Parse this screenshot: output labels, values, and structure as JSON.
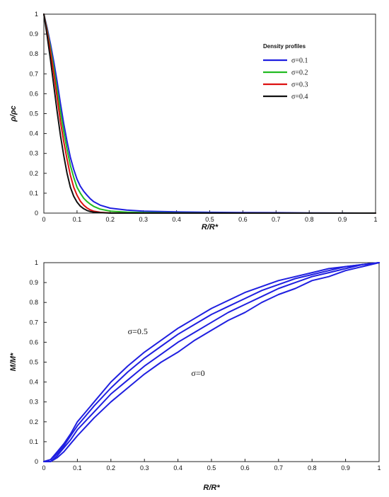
{
  "chart_data": [
    {
      "type": "line",
      "xlabel": "R/R*",
      "ylabel": "ρ/ρc",
      "xlim": [
        0,
        1
      ],
      "ylim": [
        0,
        1
      ],
      "xticks": [
        "0",
        "0.1",
        "0.2",
        "0.3",
        "0.4",
        "0.5",
        "0.6",
        "0.7",
        "0.8",
        "0.9",
        "1"
      ],
      "yticks": [
        "0",
        "0.1",
        "0.2",
        "0.3",
        "0.4",
        "0.5",
        "0.6",
        "0.7",
        "0.8",
        "0.9",
        "1"
      ],
      "grid": false,
      "legend": {
        "title": "Density profiles",
        "placement": "top-right"
      },
      "x": [
        0,
        0.01,
        0.02,
        0.03,
        0.04,
        0.05,
        0.06,
        0.07,
        0.08,
        0.09,
        0.1,
        0.11,
        0.12,
        0.13,
        0.14,
        0.15,
        0.17,
        0.2,
        0.25,
        0.3,
        0.4,
        0.5,
        0.6,
        0.7,
        0.8,
        0.9,
        1.0
      ],
      "series": [
        {
          "name": "σ=0.1",
          "color": "#1f1fe0",
          "values": [
            1.0,
            0.93,
            0.85,
            0.76,
            0.66,
            0.55,
            0.45,
            0.36,
            0.28,
            0.22,
            0.17,
            0.135,
            0.11,
            0.09,
            0.072,
            0.058,
            0.04,
            0.025,
            0.015,
            0.01,
            0.006,
            0.004,
            0.003,
            0.002,
            0.001,
            0.0005,
            0
          ]
        },
        {
          "name": "σ=0.2",
          "color": "#22bb22",
          "values": [
            1.0,
            0.92,
            0.83,
            0.73,
            0.62,
            0.51,
            0.41,
            0.32,
            0.24,
            0.18,
            0.13,
            0.1,
            0.075,
            0.058,
            0.045,
            0.034,
            0.02,
            0.01,
            0.005,
            0.003,
            0.001,
            0.0005,
            0,
            0,
            0,
            0,
            0
          ]
        },
        {
          "name": "σ=0.3",
          "color": "#dd1111",
          "values": [
            1.0,
            0.91,
            0.81,
            0.7,
            0.58,
            0.46,
            0.36,
            0.27,
            0.19,
            0.13,
            0.09,
            0.06,
            0.04,
            0.026,
            0.016,
            0.01,
            0.004,
            0.001,
            0,
            0,
            0,
            0,
            0,
            0,
            0,
            0,
            0
          ]
        },
        {
          "name": "σ=0.4",
          "color": "#111111",
          "values": [
            1.0,
            0.89,
            0.77,
            0.64,
            0.51,
            0.39,
            0.29,
            0.2,
            0.13,
            0.085,
            0.055,
            0.035,
            0.022,
            0.013,
            0.008,
            0.005,
            0.002,
            0,
            0,
            0,
            0,
            0,
            0,
            0,
            0,
            0,
            0
          ]
        }
      ]
    },
    {
      "type": "line",
      "xlabel": "R/R*",
      "ylabel": "M/M*",
      "xlim": [
        0,
        1
      ],
      "ylim": [
        0,
        1
      ],
      "xticks": [
        "0",
        "0.1",
        "0.2",
        "0.3",
        "0.4",
        "0.5",
        "0.6",
        "0.7",
        "0.8",
        "0.9",
        "1"
      ],
      "yticks": [
        "0",
        "0.1",
        "0.2",
        "0.3",
        "0.4",
        "0.5",
        "0.6",
        "0.7",
        "0.8",
        "0.9",
        "1"
      ],
      "grid": false,
      "annotations": [
        {
          "text": "σ=0.5",
          "x": 0.28,
          "y": 0.64
        },
        {
          "text": "σ=0",
          "x": 0.46,
          "y": 0.43
        }
      ],
      "x": [
        0,
        0.02,
        0.04,
        0.06,
        0.08,
        0.1,
        0.15,
        0.2,
        0.25,
        0.3,
        0.35,
        0.4,
        0.45,
        0.5,
        0.55,
        0.6,
        0.65,
        0.7,
        0.75,
        0.8,
        0.85,
        0.9,
        0.95,
        1.0
      ],
      "series": [
        {
          "color": "#1f1fe0",
          "values": [
            0,
            0,
            0.02,
            0.05,
            0.09,
            0.13,
            0.22,
            0.3,
            0.37,
            0.44,
            0.5,
            0.55,
            0.61,
            0.66,
            0.71,
            0.75,
            0.8,
            0.84,
            0.87,
            0.91,
            0.93,
            0.96,
            0.98,
            1.0
          ]
        },
        {
          "color": "#1f1fe0",
          "values": [
            0,
            0,
            0.03,
            0.07,
            0.11,
            0.16,
            0.25,
            0.34,
            0.41,
            0.48,
            0.54,
            0.6,
            0.65,
            0.7,
            0.75,
            0.79,
            0.83,
            0.87,
            0.9,
            0.93,
            0.95,
            0.97,
            0.99,
            1.0
          ]
        },
        {
          "color": "#1f1fe0",
          "values": [
            0,
            0.01,
            0.04,
            0.08,
            0.13,
            0.18,
            0.28,
            0.37,
            0.45,
            0.52,
            0.58,
            0.64,
            0.69,
            0.74,
            0.78,
            0.82,
            0.86,
            0.89,
            0.92,
            0.94,
            0.96,
            0.98,
            0.99,
            1.0
          ]
        },
        {
          "color": "#1f1fe0",
          "values": [
            0,
            0.01,
            0.05,
            0.09,
            0.14,
            0.2,
            0.3,
            0.4,
            0.48,
            0.55,
            0.61,
            0.67,
            0.72,
            0.77,
            0.81,
            0.85,
            0.88,
            0.91,
            0.93,
            0.95,
            0.97,
            0.98,
            0.99,
            1.0
          ]
        }
      ]
    }
  ]
}
